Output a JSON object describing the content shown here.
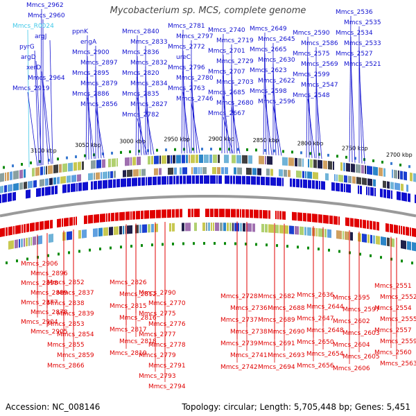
{
  "title": "Mycobacterium sp. MCS, complete genome",
  "accession": "Accession: NC_008146",
  "topology": "Topology: circular; Length: 5,705,448 bp; Genes: 5,451",
  "colors": {
    "forward": "#1010d0",
    "reverse": "#e00000",
    "rna": "#40c8e8",
    "backbone": "#9a9a9a",
    "tick_text": "#000000",
    "dots": "#0a8a0a"
  },
  "scale_labels": [
    "3100 kbp",
    "3050 kbp",
    "3000 kbp",
    "2950 kbp",
    "2900 kbp",
    "2850 kbp",
    "2800 kbp",
    "2750 kbp",
    "2700 kbp"
  ],
  "top_labels": [
    "Mmcs_2962",
    "Mmcs_2960",
    "Mmcs_R0024",
    "argJ",
    "pyrG",
    "argD",
    "xerD",
    "Mmcs_2964",
    "Mmcs_2919",
    "ppnK",
    "engA",
    "Mmcs_2900",
    "Mmcs_2897",
    "Mmcs_2895",
    "Mmcs_2879",
    "Mmcs_2886",
    "Mmcs_2856",
    "Mmcs_2840",
    "Mmcs_2833",
    "Mmcs_2836",
    "Mmcs_2832",
    "Mmcs_2820",
    "Mmcs_2834",
    "Mmcs_2835",
    "Mmcs_2827",
    "Mmcs_2782",
    "Mmcs_2781",
    "Mmcs_2797",
    "Mmcs_2772",
    "ureC",
    "Mmcs_2796",
    "Mmcs_2780",
    "Mmcs_2763",
    "Mmcs_2746",
    "Mmcs_2740",
    "Mmcs_2719",
    "Mmcs_2701",
    "Mmcs_2729",
    "Mmcs_2707",
    "Mmcs_2703",
    "Mmcs_2685",
    "Mmcs_2680",
    "Mmcs_2667",
    "Mmcs_2649",
    "Mmcs_2645",
    "Mmcs_2665",
    "Mmcs_2630",
    "Mmcs_2623",
    "Mmcs_2622",
    "Mmcs_2598",
    "Mmcs_2596",
    "Mmcs_2590",
    "Mmcs_2586",
    "Mmcs_2575",
    "Mmcs_2569",
    "Mmcs_2599",
    "Mmcs_2547",
    "Mmcs_2548",
    "Mmcs_2536",
    "Mmcs_2535",
    "Mmcs_2534",
    "Mmcs_2533",
    "Mmcs_2527",
    "Mmcs_2521"
  ],
  "bottom_labels": [
    "Mmcs_2906",
    "Mmcs_2896",
    "Mmcs_2898",
    "Mmcs_2889",
    "Mmcs_2877",
    "Mmcs_2878",
    "Mmcs_2904",
    "Mmcs_2905",
    "Mmcs_2852",
    "Mmcs_2837",
    "Mmcs_2838",
    "Mmcs_2839",
    "Mmcs_2853",
    "Mmcs_2854",
    "Mmcs_2855",
    "Mmcs_2859",
    "Mmcs_2866",
    "Mmcs_2826",
    "Mmcs_2812",
    "Mmcs_2815",
    "Mmcs_2816",
    "Mmcs_2817",
    "Mmcs_2818",
    "Mmcs_2819",
    "Mmcs_2790",
    "Mmcs_2770",
    "Mmcs_2775",
    "Mmcs_2776",
    "Mmcs_2777",
    "Mmcs_2778",
    "Mmcs_2779",
    "Mmcs_2791",
    "Mmcs_2793",
    "Mmcs_2794",
    "Mmcs_2728",
    "Mmcs_2736",
    "Mmcs_2737",
    "Mmcs_2738",
    "Mmcs_2739",
    "Mmcs_2741",
    "Mmcs_2742",
    "Mmcs_2682",
    "Mmcs_2688",
    "Mmcs_2689",
    "Mmcs_2690",
    "Mmcs_2691",
    "Mmcs_2693",
    "Mmcs_2694",
    "Mmcs_2636",
    "Mmcs_2644",
    "Mmcs_2647",
    "Mmcs_2648",
    "Mmcs_2650",
    "Mmcs_2654",
    "Mmcs_2656",
    "Mmcs_2595",
    "Mmcs_2597",
    "Mmcs_2602",
    "Mmcs_2603",
    "Mmcs_2604",
    "Mmcs_2605",
    "Mmcs_2606",
    "Mmcs_2551",
    "Mmcs_2552",
    "Mmcs_2554",
    "Mmcs_2555",
    "Mmcs_2557",
    "Mmcs_2559",
    "Mmcs_2560",
    "Mmcs_2563"
  ]
}
